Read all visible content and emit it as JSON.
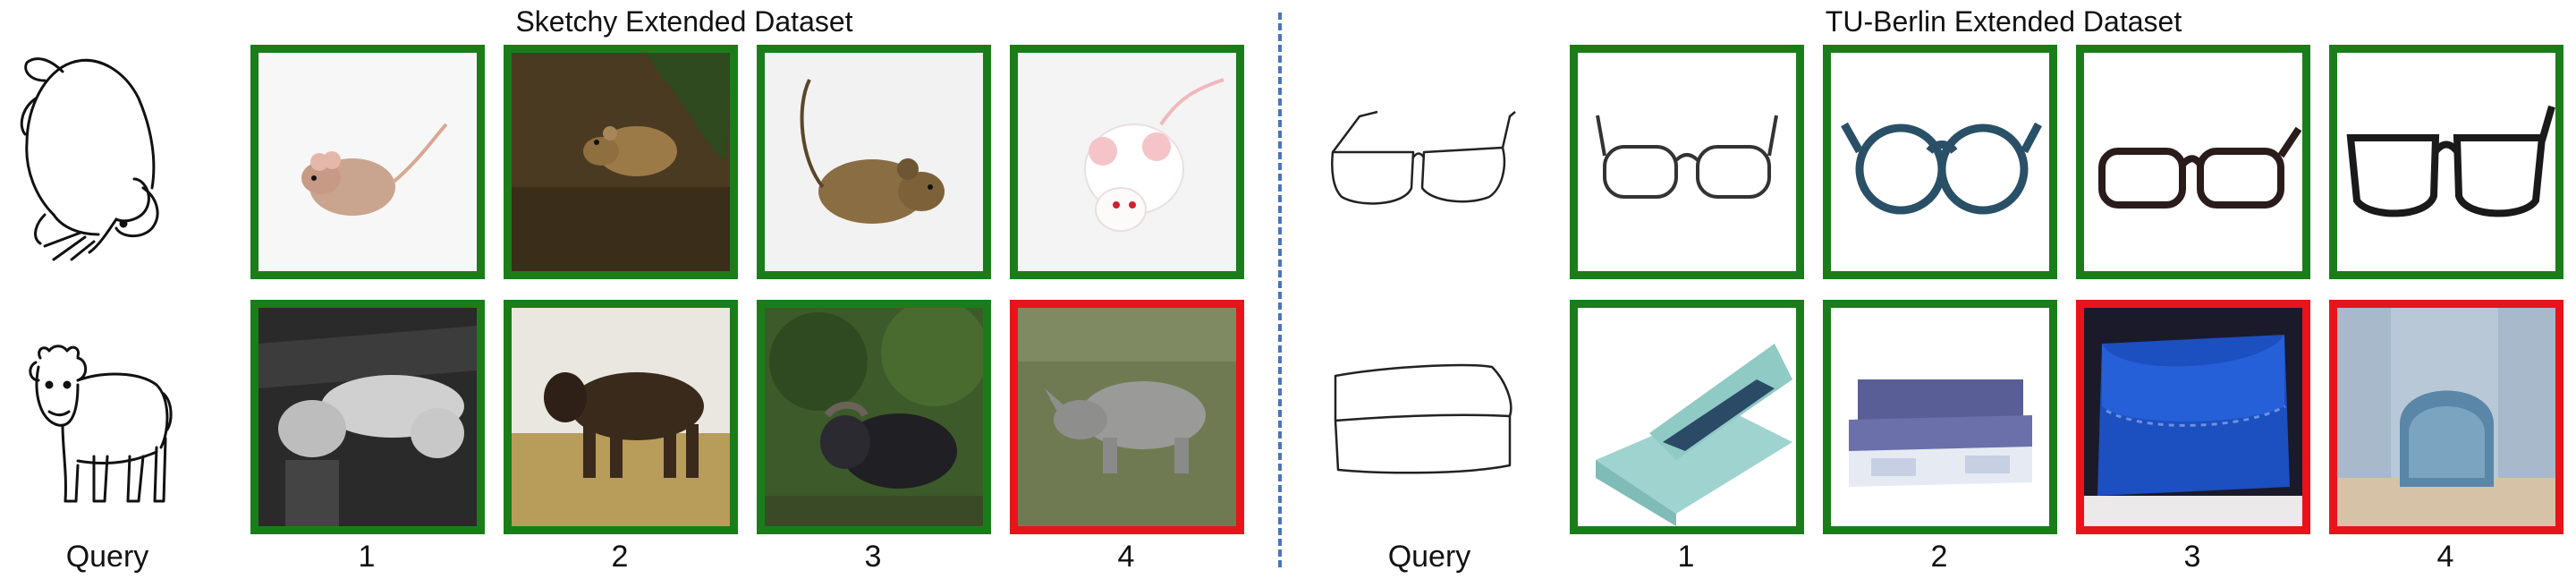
{
  "panels": [
    {
      "title": "Sketchy Extended Dataset",
      "query_label": "Query",
      "rank_labels": [
        "1",
        "2",
        "3",
        "4"
      ],
      "rows": [
        {
          "query_icon": "mouse-sketch-icon",
          "results": [
            {
              "icon": "mouse-photo-icon",
              "correct": true
            },
            {
              "icon": "mouse-photo-icon",
              "correct": true
            },
            {
              "icon": "mouse-photo-icon",
              "correct": true
            },
            {
              "icon": "white-mouse-photo-icon",
              "correct": true
            }
          ]
        },
        {
          "query_icon": "cow-sketch-icon",
          "results": [
            {
              "icon": "cattle-photo-icon",
              "correct": true
            },
            {
              "icon": "cow-photo-icon",
              "correct": true
            },
            {
              "icon": "buffalo-photo-icon",
              "correct": true
            },
            {
              "icon": "rhino-photo-icon",
              "correct": false
            }
          ]
        }
      ]
    },
    {
      "title": "TU-Berlin Extended Dataset",
      "query_label": "Query",
      "rank_labels": [
        "1",
        "2",
        "3",
        "4"
      ],
      "rows": [
        {
          "query_icon": "eyeglasses-sketch-icon",
          "results": [
            {
              "icon": "eyeglasses-photo-icon",
              "correct": true
            },
            {
              "icon": "eyeglasses-photo-icon",
              "correct": true
            },
            {
              "icon": "eyeglasses-photo-icon",
              "correct": true
            },
            {
              "icon": "eyeglasses-photo-icon",
              "correct": true
            }
          ]
        },
        {
          "query_icon": "couch-sketch-icon",
          "results": [
            {
              "icon": "storage-bed-photo-icon",
              "correct": true
            },
            {
              "icon": "sofa-photo-icon",
              "correct": true
            },
            {
              "icon": "blue-purse-photo-icon",
              "correct": false
            },
            {
              "icon": "coin-purse-photo-icon",
              "correct": false
            }
          ]
        }
      ]
    }
  ],
  "colors": {
    "correct": "#1a7d1a",
    "wrong": "#e8141a",
    "divider": "#4a74b8"
  }
}
